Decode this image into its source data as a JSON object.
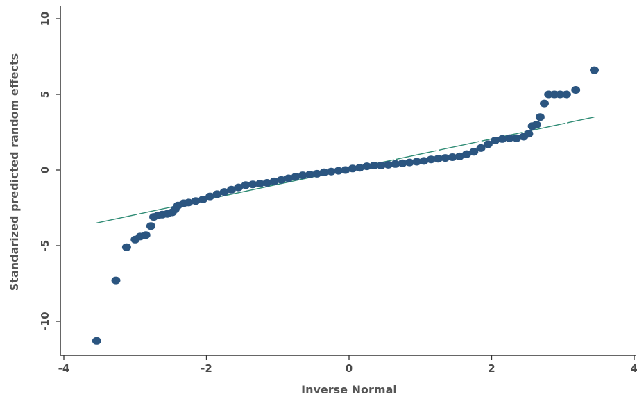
{
  "chart_data": {
    "type": "scatter",
    "title": "",
    "xlabel": "Inverse Normal",
    "ylabel": "Standarized predicted random effects",
    "xlim": [
      -4,
      4
    ],
    "ylim": [
      -11.5,
      10
    ],
    "xticks": [
      -4,
      -2,
      0,
      2,
      4
    ],
    "yticks": [
      -10,
      -5,
      0,
      5,
      10
    ],
    "grid": false,
    "legend": "none",
    "colors": {
      "points": "#2b5580",
      "line": "#2e8b74",
      "axis": "#333333"
    },
    "reference_line": {
      "x": [
        -3.54,
        3.44
      ],
      "y": [
        -3.5,
        3.5
      ]
    },
    "points": [
      {
        "x": -3.54,
        "y": -11.3
      },
      {
        "x": -3.27,
        "y": -7.3
      },
      {
        "x": -3.12,
        "y": -5.1
      },
      {
        "x": -3.0,
        "y": -4.6
      },
      {
        "x": -2.93,
        "y": -4.4
      },
      {
        "x": -2.85,
        "y": -4.3
      },
      {
        "x": -2.78,
        "y": -3.7
      },
      {
        "x": -2.74,
        "y": -3.1
      },
      {
        "x": -2.68,
        "y": -3.0
      },
      {
        "x": -2.62,
        "y": -2.95
      },
      {
        "x": -2.55,
        "y": -2.9
      },
      {
        "x": -2.48,
        "y": -2.8
      },
      {
        "x": -2.44,
        "y": -2.6
      },
      {
        "x": -2.4,
        "y": -2.35
      },
      {
        "x": -2.32,
        "y": -2.2
      },
      {
        "x": -2.25,
        "y": -2.15
      },
      {
        "x": -2.15,
        "y": -2.05
      },
      {
        "x": -2.05,
        "y": -1.95
      },
      {
        "x": -1.95,
        "y": -1.75
      },
      {
        "x": -1.85,
        "y": -1.6
      },
      {
        "x": -1.75,
        "y": -1.45
      },
      {
        "x": -1.65,
        "y": -1.3
      },
      {
        "x": -1.55,
        "y": -1.15
      },
      {
        "x": -1.45,
        "y": -1.0
      },
      {
        "x": -1.35,
        "y": -0.95
      },
      {
        "x": -1.25,
        "y": -0.9
      },
      {
        "x": -1.15,
        "y": -0.85
      },
      {
        "x": -1.05,
        "y": -0.75
      },
      {
        "x": -0.95,
        "y": -0.65
      },
      {
        "x": -0.85,
        "y": -0.55
      },
      {
        "x": -0.75,
        "y": -0.45
      },
      {
        "x": -0.65,
        "y": -0.35
      },
      {
        "x": -0.55,
        "y": -0.3
      },
      {
        "x": -0.45,
        "y": -0.25
      },
      {
        "x": -0.35,
        "y": -0.15
      },
      {
        "x": -0.25,
        "y": -0.1
      },
      {
        "x": -0.15,
        "y": -0.05
      },
      {
        "x": -0.05,
        "y": 0.0
      },
      {
        "x": 0.05,
        "y": 0.1
      },
      {
        "x": 0.15,
        "y": 0.15
      },
      {
        "x": 0.25,
        "y": 0.25
      },
      {
        "x": 0.35,
        "y": 0.3
      },
      {
        "x": 0.45,
        "y": 0.3
      },
      {
        "x": 0.55,
        "y": 0.35
      },
      {
        "x": 0.65,
        "y": 0.4
      },
      {
        "x": 0.75,
        "y": 0.45
      },
      {
        "x": 0.85,
        "y": 0.5
      },
      {
        "x": 0.95,
        "y": 0.55
      },
      {
        "x": 1.05,
        "y": 0.6
      },
      {
        "x": 1.15,
        "y": 0.7
      },
      {
        "x": 1.25,
        "y": 0.75
      },
      {
        "x": 1.35,
        "y": 0.8
      },
      {
        "x": 1.45,
        "y": 0.85
      },
      {
        "x": 1.55,
        "y": 0.9
      },
      {
        "x": 1.65,
        "y": 1.05
      },
      {
        "x": 1.75,
        "y": 1.2
      },
      {
        "x": 1.85,
        "y": 1.45
      },
      {
        "x": 1.95,
        "y": 1.7
      },
      {
        "x": 2.05,
        "y": 1.95
      },
      {
        "x": 2.15,
        "y": 2.05
      },
      {
        "x": 2.25,
        "y": 2.1
      },
      {
        "x": 2.35,
        "y": 2.1
      },
      {
        "x": 2.45,
        "y": 2.2
      },
      {
        "x": 2.52,
        "y": 2.4
      },
      {
        "x": 2.57,
        "y": 2.9
      },
      {
        "x": 2.63,
        "y": 3.0
      },
      {
        "x": 2.68,
        "y": 3.5
      },
      {
        "x": 2.74,
        "y": 4.4
      },
      {
        "x": 2.8,
        "y": 5.0
      },
      {
        "x": 2.88,
        "y": 5.0
      },
      {
        "x": 2.96,
        "y": 5.0
      },
      {
        "x": 3.05,
        "y": 5.0
      },
      {
        "x": 3.18,
        "y": 5.3
      },
      {
        "x": 3.44,
        "y": 6.6
      }
    ]
  }
}
